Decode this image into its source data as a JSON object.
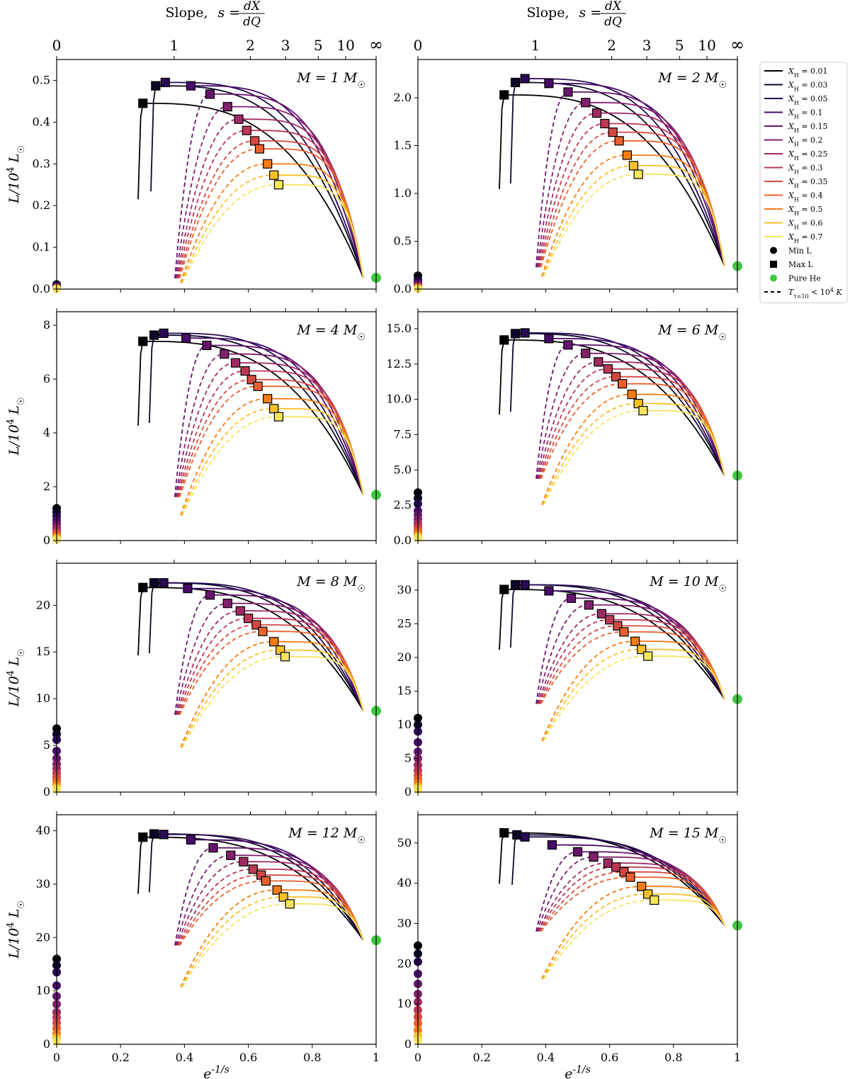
{
  "chart_data": {
    "type": "line",
    "top_axis": {
      "label": "Slope, s = dX/dQ",
      "ticks": [
        "0",
        "1",
        "2",
        "3",
        "5",
        "10",
        "∞"
      ],
      "tick_values": [
        0,
        1,
        2,
        3,
        5,
        10,
        "inf"
      ]
    },
    "xlabel": "e^{-1/s}",
    "ylabel": "L/10^4 L_☉",
    "xlim": [
      0,
      1
    ],
    "xticks": [
      0,
      0.2,
      0.4,
      0.6,
      0.8,
      1
    ],
    "xtick_labels": [
      "0",
      "0.2",
      "0.4",
      "0.6",
      "0.8",
      "1"
    ],
    "legend": {
      "placement": "outside-right",
      "series": [
        {
          "label": "X_H = 0.01",
          "XH": 0.01,
          "color": "#000004"
        },
        {
          "label": "X_H = 0.03",
          "XH": 0.03,
          "color": "#0d0829"
        },
        {
          "label": "X_H = 0.05",
          "XH": 0.05,
          "color": "#280b53"
        },
        {
          "label": "X_H = 0.1",
          "XH": 0.1,
          "color": "#470b6a"
        },
        {
          "label": "X_H = 0.15",
          "XH": 0.15,
          "color": "#65156e"
        },
        {
          "label": "X_H = 0.2",
          "XH": 0.2,
          "color": "#82206c"
        },
        {
          "label": "X_H = 0.25",
          "XH": 0.25,
          "color": "#9f2a63"
        },
        {
          "label": "X_H = 0.3",
          "XH": 0.3,
          "color": "#bc3754"
        },
        {
          "label": "X_H = 0.35",
          "XH": 0.35,
          "color": "#d44842"
        },
        {
          "label": "X_H = 0.4",
          "XH": 0.4,
          "color": "#e8602d"
        },
        {
          "label": "X_H = 0.5",
          "XH": 0.5,
          "color": "#f57d15"
        },
        {
          "label": "X_H = 0.6",
          "XH": 0.6,
          "color": "#fac127"
        },
        {
          "label": "X_H = 0.7",
          "XH": 0.7,
          "color": "#f3e55d"
        }
      ],
      "markers": [
        {
          "label": "Min L",
          "shape": "circle",
          "color": "#000000"
        },
        {
          "label": "Max L",
          "shape": "square",
          "color": "#000000"
        },
        {
          "label": "Pure He",
          "shape": "circle",
          "color": "#3fc83f"
        },
        {
          "label": "T_{τ=10} < 10^4 K",
          "shape": "dashed-line",
          "color": "#000000"
        }
      ]
    },
    "panels": [
      {
        "mass_label": "M = 1 M_☉",
        "ylim": [
          0,
          0.55
        ],
        "yticks": [
          0.0,
          0.1,
          0.2,
          0.3,
          0.4,
          0.5
        ],
        "ytick_labels": [
          "0.0",
          "0.1",
          "0.2",
          "0.3",
          "0.4",
          "0.5"
        ],
        "pure_he": 0.027,
        "min_L": [
          0.011,
          0.009,
          0.007,
          0.006,
          0.005,
          0.004,
          0.003,
          0.002,
          0.0018,
          0.0015,
          0.001,
          0.0007,
          0.0005
        ],
        "max_L": [
          {
            "x": 0.27,
            "y": 0.445
          },
          {
            "x": 0.31,
            "y": 0.487
          },
          {
            "x": 0.34,
            "y": 0.495
          },
          {
            "x": 0.42,
            "y": 0.487
          },
          {
            "x": 0.48,
            "y": 0.467
          },
          {
            "x": 0.535,
            "y": 0.437
          },
          {
            "x": 0.57,
            "y": 0.407
          },
          {
            "x": 0.595,
            "y": 0.38
          },
          {
            "x": 0.62,
            "y": 0.355
          },
          {
            "x": 0.635,
            "y": 0.336
          },
          {
            "x": 0.66,
            "y": 0.3
          },
          {
            "x": 0.68,
            "y": 0.273
          },
          {
            "x": 0.695,
            "y": 0.25
          }
        ]
      },
      {
        "mass_label": "M = 2 M_☉",
        "ylim": [
          0,
          2.4
        ],
        "yticks": [
          0.0,
          0.5,
          1.0,
          1.5,
          2.0
        ],
        "ytick_labels": [
          "0.0",
          "0.5",
          "1.0",
          "1.5",
          "2.0"
        ],
        "pure_he": 0.24,
        "min_L": [
          0.14,
          0.1,
          0.08,
          0.06,
          0.05,
          0.04,
          0.03,
          0.025,
          0.02,
          0.015,
          0.01,
          0.006,
          0.003
        ],
        "max_L": [
          {
            "x": 0.27,
            "y": 2.03
          },
          {
            "x": 0.305,
            "y": 2.16
          },
          {
            "x": 0.335,
            "y": 2.2
          },
          {
            "x": 0.41,
            "y": 2.15
          },
          {
            "x": 0.47,
            "y": 2.06
          },
          {
            "x": 0.525,
            "y": 1.95
          },
          {
            "x": 0.56,
            "y": 1.84
          },
          {
            "x": 0.585,
            "y": 1.73
          },
          {
            "x": 0.61,
            "y": 1.64
          },
          {
            "x": 0.63,
            "y": 1.55
          },
          {
            "x": 0.655,
            "y": 1.4
          },
          {
            "x": 0.675,
            "y": 1.29
          },
          {
            "x": 0.69,
            "y": 1.2
          }
        ]
      },
      {
        "mass_label": "M = 4 M_☉",
        "ylim": [
          0,
          8.5
        ],
        "yticks": [
          0,
          2,
          4,
          6,
          8
        ],
        "ytick_labels": [
          "0",
          "2",
          "4",
          "6",
          "8"
        ],
        "pure_he": 1.7,
        "min_L": [
          1.2,
          1.05,
          0.9,
          0.75,
          0.62,
          0.5,
          0.42,
          0.34,
          0.27,
          0.2,
          0.14,
          0.08,
          0.04
        ],
        "max_L": [
          {
            "x": 0.27,
            "y": 7.4
          },
          {
            "x": 0.305,
            "y": 7.63
          },
          {
            "x": 0.335,
            "y": 7.7
          },
          {
            "x": 0.405,
            "y": 7.52
          },
          {
            "x": 0.47,
            "y": 7.25
          },
          {
            "x": 0.525,
            "y": 6.93
          },
          {
            "x": 0.56,
            "y": 6.6
          },
          {
            "x": 0.59,
            "y": 6.3
          },
          {
            "x": 0.61,
            "y": 5.98
          },
          {
            "x": 0.63,
            "y": 5.73
          },
          {
            "x": 0.66,
            "y": 5.27
          },
          {
            "x": 0.68,
            "y": 4.9
          },
          {
            "x": 0.695,
            "y": 4.6
          }
        ]
      },
      {
        "mass_label": "M = 6 M_☉",
        "ylim": [
          0,
          16.2
        ],
        "yticks": [
          0.0,
          2.5,
          5.0,
          7.5,
          10.0,
          12.5,
          15.0
        ],
        "ytick_labels": [
          "0.0",
          "2.5",
          "5.0",
          "7.5",
          "10.0",
          "12.5",
          "15.0"
        ],
        "pure_he": 4.6,
        "min_L": [
          3.4,
          3.0,
          2.6,
          2.1,
          1.8,
          1.5,
          1.2,
          1.0,
          0.8,
          0.6,
          0.45,
          0.3,
          0.2
        ],
        "max_L": [
          {
            "x": 0.27,
            "y": 14.2
          },
          {
            "x": 0.305,
            "y": 14.65
          },
          {
            "x": 0.335,
            "y": 14.7
          },
          {
            "x": 0.41,
            "y": 14.3
          },
          {
            "x": 0.47,
            "y": 13.85
          },
          {
            "x": 0.525,
            "y": 13.25
          },
          {
            "x": 0.565,
            "y": 12.65
          },
          {
            "x": 0.595,
            "y": 12.15
          },
          {
            "x": 0.62,
            "y": 11.6
          },
          {
            "x": 0.64,
            "y": 11.1
          },
          {
            "x": 0.67,
            "y": 10.35
          },
          {
            "x": 0.69,
            "y": 9.7
          },
          {
            "x": 0.705,
            "y": 9.2
          }
        ]
      },
      {
        "mass_label": "M = 8 M_☉",
        "ylim": [
          0,
          24.5
        ],
        "yticks": [
          0,
          5,
          10,
          15,
          20
        ],
        "ytick_labels": [
          "0",
          "5",
          "10",
          "15",
          "20"
        ],
        "pure_he": 8.7,
        "min_L": [
          6.8,
          6.2,
          5.6,
          4.4,
          3.6,
          3.0,
          2.5,
          2.0,
          1.6,
          1.2,
          0.8,
          0.5,
          0.3
        ],
        "max_L": [
          {
            "x": 0.27,
            "y": 21.9
          },
          {
            "x": 0.305,
            "y": 22.4
          },
          {
            "x": 0.335,
            "y": 22.4
          },
          {
            "x": 0.41,
            "y": 21.8
          },
          {
            "x": 0.48,
            "y": 21.1
          },
          {
            "x": 0.535,
            "y": 20.2
          },
          {
            "x": 0.575,
            "y": 19.4
          },
          {
            "x": 0.6,
            "y": 18.6
          },
          {
            "x": 0.625,
            "y": 17.9
          },
          {
            "x": 0.645,
            "y": 17.2
          },
          {
            "x": 0.68,
            "y": 16.1
          },
          {
            "x": 0.7,
            "y": 15.2
          },
          {
            "x": 0.715,
            "y": 14.5
          }
        ]
      },
      {
        "mass_label": "M = 10 M_☉",
        "ylim": [
          0,
          34
        ],
        "yticks": [
          0,
          5,
          10,
          15,
          20,
          25,
          30
        ],
        "ytick_labels": [
          "0",
          "5",
          "10",
          "15",
          "20",
          "25",
          "30"
        ],
        "pure_he": 13.8,
        "min_L": [
          11.0,
          10.0,
          9.0,
          7.4,
          6.0,
          5.0,
          4.0,
          3.2,
          2.5,
          1.9,
          1.3,
          0.8,
          0.4
        ],
        "max_L": [
          {
            "x": 0.27,
            "y": 30.1
          },
          {
            "x": 0.305,
            "y": 30.8
          },
          {
            "x": 0.335,
            "y": 30.8
          },
          {
            "x": 0.41,
            "y": 29.9
          },
          {
            "x": 0.48,
            "y": 28.8
          },
          {
            "x": 0.535,
            "y": 27.8
          },
          {
            "x": 0.575,
            "y": 26.5
          },
          {
            "x": 0.6,
            "y": 25.6
          },
          {
            "x": 0.625,
            "y": 24.7
          },
          {
            "x": 0.645,
            "y": 23.8
          },
          {
            "x": 0.68,
            "y": 22.4
          },
          {
            "x": 0.7,
            "y": 21.2
          },
          {
            "x": 0.72,
            "y": 20.2
          }
        ]
      },
      {
        "mass_label": "M = 12 M_☉",
        "ylim": [
          0,
          43
        ],
        "yticks": [
          0,
          10,
          20,
          30,
          40
        ],
        "ytick_labels": [
          "0",
          "10",
          "20",
          "30",
          "40"
        ],
        "pure_he": 19.5,
        "min_L": [
          16.0,
          14.8,
          13.5,
          11.0,
          9.0,
          7.5,
          6.0,
          5.0,
          4.0,
          3.0,
          2.0,
          1.2,
          0.6
        ],
        "max_L": [
          {
            "x": 0.27,
            "y": 38.8
          },
          {
            "x": 0.305,
            "y": 39.4
          },
          {
            "x": 0.335,
            "y": 39.3
          },
          {
            "x": 0.42,
            "y": 38.3
          },
          {
            "x": 0.49,
            "y": 36.8
          },
          {
            "x": 0.545,
            "y": 35.4
          },
          {
            "x": 0.585,
            "y": 34.2
          },
          {
            "x": 0.615,
            "y": 32.8
          },
          {
            "x": 0.64,
            "y": 31.7
          },
          {
            "x": 0.655,
            "y": 30.6
          },
          {
            "x": 0.69,
            "y": 28.9
          },
          {
            "x": 0.71,
            "y": 27.6
          },
          {
            "x": 0.73,
            "y": 26.3
          }
        ]
      },
      {
        "mass_label": "M = 15 M_☉",
        "ylim": [
          0,
          57
        ],
        "yticks": [
          0,
          10,
          20,
          30,
          40,
          50
        ],
        "ytick_labels": [
          "0",
          "10",
          "20",
          "30",
          "40",
          "50"
        ],
        "pure_he": 29.5,
        "min_L": [
          24.5,
          22.5,
          20.5,
          17.5,
          15.0,
          12.5,
          10.5,
          8.5,
          6.8,
          5.2,
          3.5,
          2.0,
          1.0
        ],
        "max_L": [
          {
            "x": 0.27,
            "y": 52.5
          },
          {
            "x": 0.31,
            "y": 52.0
          },
          {
            "x": 0.335,
            "y": 51.5
          },
          {
            "x": 0.42,
            "y": 49.5
          },
          {
            "x": 0.5,
            "y": 47.8
          },
          {
            "x": 0.55,
            "y": 46.5
          },
          {
            "x": 0.595,
            "y": 45.0
          },
          {
            "x": 0.62,
            "y": 44.0
          },
          {
            "x": 0.645,
            "y": 42.8
          },
          {
            "x": 0.665,
            "y": 41.5
          },
          {
            "x": 0.7,
            "y": 39.2
          },
          {
            "x": 0.72,
            "y": 37.3
          },
          {
            "x": 0.74,
            "y": 35.8
          }
        ]
      }
    ]
  }
}
